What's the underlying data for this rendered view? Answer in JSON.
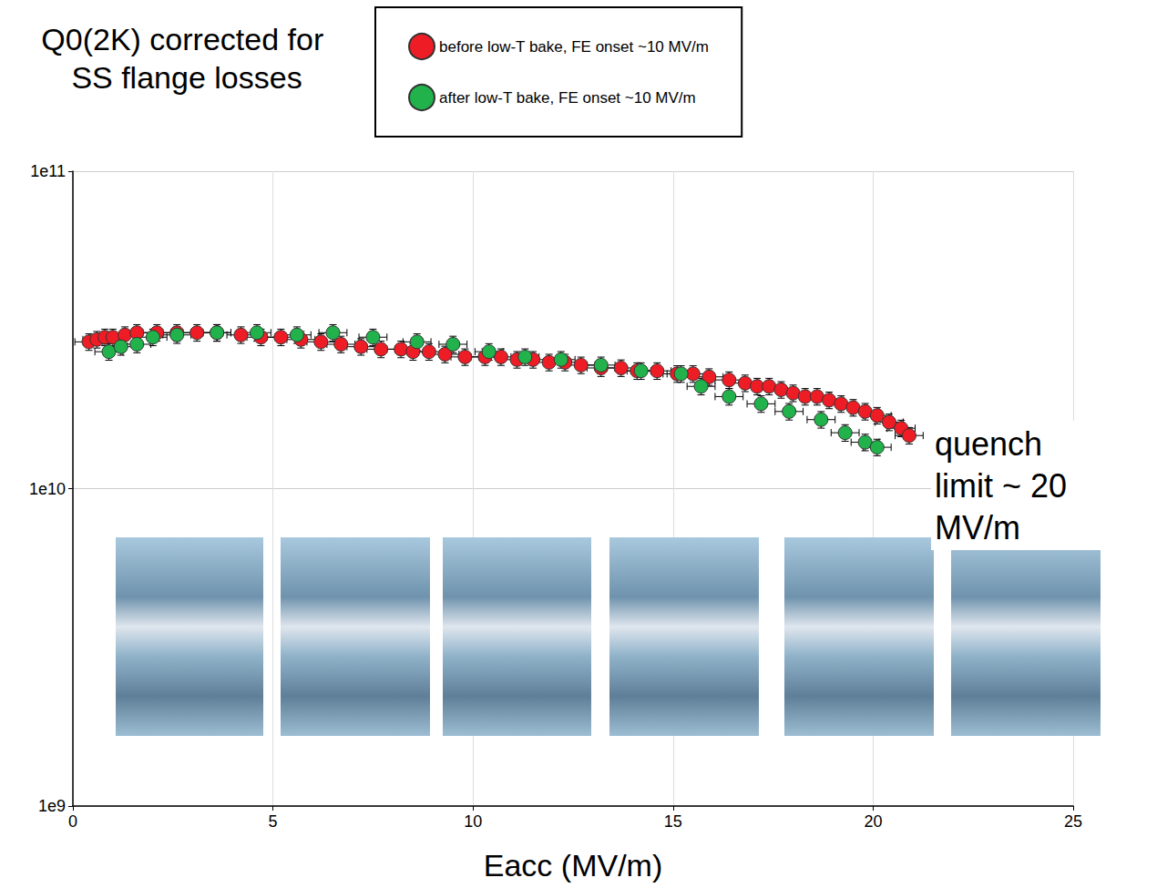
{
  "chart_data": {
    "type": "scatter",
    "title": "Q0(2K) corrected for SS flange losses",
    "x_label": "Eacc (MV/m)",
    "annotation": "quench limit ~ 20 MV/m",
    "log": "y",
    "grid": true,
    "legend": "top",
    "xlim": [
      0,
      25
    ],
    "xticks": [
      0,
      5,
      10,
      15,
      20,
      25
    ],
    "ylim": [
      1000000000.0,
      100000000000.0
    ],
    "yticks": [
      {
        "value": 1000000000.0,
        "label": "1e9"
      },
      {
        "value": 10000000000.0,
        "label": "1e10"
      },
      {
        "value": 100000000000.0,
        "label": "1e11"
      }
    ],
    "series": [
      {
        "name": "before low-T bake, FE onset ~10 MV/m",
        "color": "#ee1c25",
        "marker": "circle",
        "x_error": 0.35,
        "y_error_percent": 6,
        "x": [
          0.4,
          0.6,
          0.8,
          1.0,
          1.3,
          1.6,
          2.1,
          2.6,
          3.1,
          3.6,
          4.2,
          4.7,
          5.2,
          5.7,
          6.2,
          6.7,
          7.2,
          7.7,
          8.2,
          8.5,
          8.9,
          9.3,
          9.8,
          10.3,
          10.7,
          11.1,
          11.5,
          11.9,
          12.3,
          12.7,
          13.2,
          13.7,
          14.1,
          14.6,
          15.1,
          15.5,
          15.9,
          16.4,
          16.8,
          17.1,
          17.4,
          17.7,
          18.0,
          18.3,
          18.6,
          18.9,
          19.2,
          19.5,
          19.8,
          20.1,
          20.4,
          20.7,
          20.9
        ],
        "values": [
          29000000000.0,
          29500000000.0,
          30000000000.0,
          30000000000.0,
          30500000000.0,
          31000000000.0,
          31000000000.0,
          31000000000.0,
          31000000000.0,
          31000000000.0,
          30500000000.0,
          30000000000.0,
          30000000000.0,
          29500000000.0,
          29000000000.0,
          28500000000.0,
          28000000000.0,
          27500000000.0,
          27500000000.0,
          27000000000.0,
          27000000000.0,
          26500000000.0,
          26000000000.0,
          26000000000.0,
          26000000000.0,
          25500000000.0,
          25500000000.0,
          25000000000.0,
          25000000000.0,
          24500000000.0,
          24000000000.0,
          24000000000.0,
          23500000000.0,
          23500000000.0,
          23000000000.0,
          23000000000.0,
          22500000000.0,
          22000000000.0,
          21500000000.0,
          21000000000.0,
          21000000000.0,
          20500000000.0,
          20000000000.0,
          19500000000.0,
          19500000000.0,
          19000000000.0,
          18500000000.0,
          18000000000.0,
          17500000000.0,
          17000000000.0,
          16200000000.0,
          15500000000.0,
          14700000000.0
        ]
      },
      {
        "name": "after low-T bake, FE onset ~10 MV/m",
        "color": "#21b24b",
        "marker": "circle",
        "x_error": 0.35,
        "y_error_percent": 6,
        "x": [
          0.9,
          1.2,
          1.6,
          2.0,
          2.6,
          3.6,
          4.6,
          5.6,
          6.5,
          7.5,
          8.6,
          9.5,
          10.4,
          11.3,
          12.2,
          13.2,
          14.2,
          15.2,
          15.7,
          16.4,
          17.2,
          17.9,
          18.7,
          19.3,
          19.8,
          20.1
        ],
        "values": [
          27000000000.0,
          28000000000.0,
          28500000000.0,
          30000000000.0,
          30500000000.0,
          31000000000.0,
          31000000000.0,
          30500000000.0,
          31000000000.0,
          30000000000.0,
          29000000000.0,
          28500000000.0,
          27000000000.0,
          26000000000.0,
          25500000000.0,
          24500000000.0,
          23500000000.0,
          23000000000.0,
          21000000000.0,
          19500000000.0,
          18500000000.0,
          17500000000.0,
          16500000000.0,
          15000000000.0,
          14000000000.0,
          13500000000.0
        ]
      }
    ]
  }
}
